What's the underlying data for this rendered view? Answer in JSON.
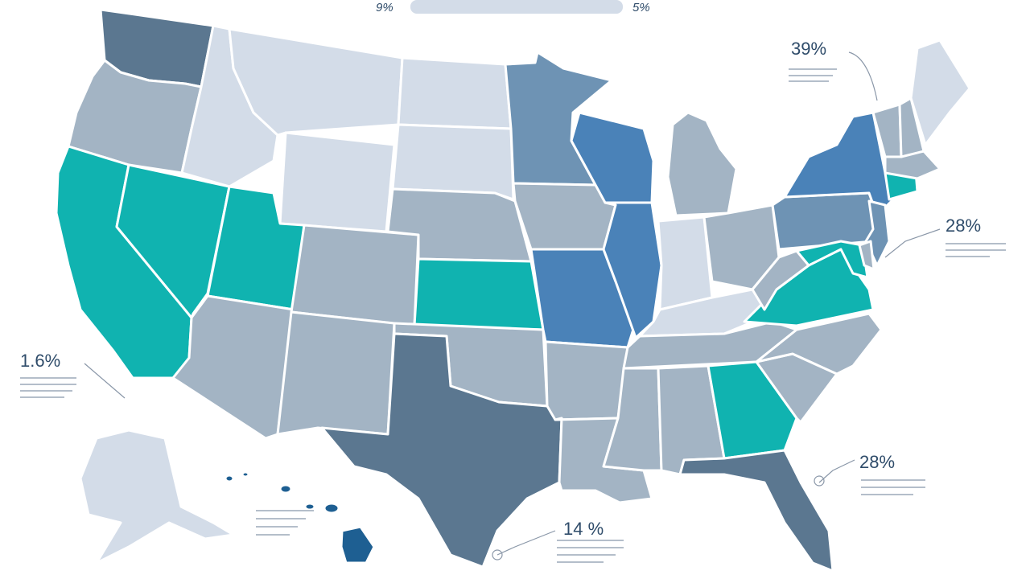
{
  "colors": {
    "light": "#d3dce8",
    "gray": "#a3b4c4",
    "slate": "#5b7790",
    "steel": "#6e93b4",
    "blue": "#4a82b8",
    "teal": "#10b3b0",
    "navy": "#1e5f92",
    "bar": "#d3dce8"
  },
  "top_bar": {
    "left_label": "9%",
    "right_label": "5%"
  },
  "callouts": {
    "northeast": "39%",
    "midatlantic": "28%",
    "west": "1.6%",
    "southeast": "28%",
    "gulf": "14 %"
  },
  "states": [
    {
      "name": "washington",
      "tone": "slate"
    },
    {
      "name": "oregon",
      "tone": "gray"
    },
    {
      "name": "california",
      "tone": "teal"
    },
    {
      "name": "nevada",
      "tone": "teal"
    },
    {
      "name": "idaho",
      "tone": "light"
    },
    {
      "name": "montana",
      "tone": "light"
    },
    {
      "name": "wyoming",
      "tone": "light"
    },
    {
      "name": "utah",
      "tone": "teal"
    },
    {
      "name": "arizona",
      "tone": "gray"
    },
    {
      "name": "colorado",
      "tone": "gray"
    },
    {
      "name": "new-mexico",
      "tone": "gray"
    },
    {
      "name": "north-dakota",
      "tone": "light"
    },
    {
      "name": "south-dakota",
      "tone": "light"
    },
    {
      "name": "nebraska",
      "tone": "gray"
    },
    {
      "name": "kansas",
      "tone": "teal"
    },
    {
      "name": "oklahoma",
      "tone": "gray"
    },
    {
      "name": "texas",
      "tone": "slate"
    },
    {
      "name": "minnesota",
      "tone": "steel"
    },
    {
      "name": "iowa",
      "tone": "gray"
    },
    {
      "name": "missouri",
      "tone": "blue"
    },
    {
      "name": "arkansas",
      "tone": "gray"
    },
    {
      "name": "louisiana",
      "tone": "gray"
    },
    {
      "name": "wisconsin",
      "tone": "blue"
    },
    {
      "name": "illinois",
      "tone": "blue"
    },
    {
      "name": "michigan",
      "tone": "gray"
    },
    {
      "name": "indiana",
      "tone": "light"
    },
    {
      "name": "ohio",
      "tone": "gray"
    },
    {
      "name": "kentucky",
      "tone": "light"
    },
    {
      "name": "tennessee",
      "tone": "gray"
    },
    {
      "name": "mississippi",
      "tone": "gray"
    },
    {
      "name": "alabama",
      "tone": "gray"
    },
    {
      "name": "georgia",
      "tone": "teal"
    },
    {
      "name": "florida",
      "tone": "slate"
    },
    {
      "name": "south-carolina",
      "tone": "gray"
    },
    {
      "name": "north-carolina",
      "tone": "gray"
    },
    {
      "name": "virginia",
      "tone": "teal"
    },
    {
      "name": "west-virginia",
      "tone": "gray"
    },
    {
      "name": "pennsylvania",
      "tone": "steel"
    },
    {
      "name": "new-york",
      "tone": "blue"
    },
    {
      "name": "new-jersey",
      "tone": "steel"
    },
    {
      "name": "maryland",
      "tone": "teal"
    },
    {
      "name": "delaware",
      "tone": "gray"
    },
    {
      "name": "connecticut",
      "tone": "teal"
    },
    {
      "name": "massachusetts",
      "tone": "gray"
    },
    {
      "name": "vermont",
      "tone": "gray"
    },
    {
      "name": "new-hampshire",
      "tone": "gray"
    },
    {
      "name": "maine",
      "tone": "light"
    },
    {
      "name": "alaska",
      "tone": "light"
    },
    {
      "name": "hawaii",
      "tone": "navy"
    }
  ]
}
